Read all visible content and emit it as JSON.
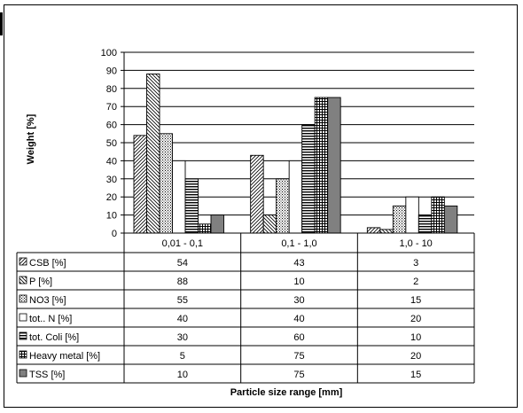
{
  "chart_data": {
    "type": "bar",
    "title": "",
    "xlabel": "Particle size range [mm]",
    "ylabel": "Weight [%]",
    "ylim": [
      0,
      100
    ],
    "yticks": [
      0,
      10,
      20,
      30,
      40,
      50,
      60,
      70,
      80,
      90,
      100
    ],
    "grid": true,
    "legend": "data-table",
    "categories": [
      "0,01 - 0,1",
      "0,1 - 1,0",
      "1,0 - 10"
    ],
    "series": [
      {
        "name": "CSB [%]",
        "values": [
          54,
          43,
          3
        ],
        "pattern": "diag-up"
      },
      {
        "name": "P [%]",
        "values": [
          88,
          10,
          2
        ],
        "pattern": "diag-down"
      },
      {
        "name": "NO3 [%]",
        "values": [
          55,
          30,
          15
        ],
        "pattern": "dots"
      },
      {
        "name": "tot.. N [%]",
        "values": [
          40,
          40,
          20
        ],
        "pattern": "white"
      },
      {
        "name": "tot. Coli [%]",
        "values": [
          30,
          60,
          10
        ],
        "pattern": "hlines"
      },
      {
        "name": "Heavy metal [%]",
        "values": [
          5,
          75,
          20
        ],
        "pattern": "grid"
      },
      {
        "name": "TSS [%]",
        "values": [
          10,
          75,
          15
        ],
        "pattern": "gray"
      }
    ],
    "colors": {
      "gray_fill": "#808080",
      "line": "#000000",
      "background": "#ffffff"
    }
  }
}
